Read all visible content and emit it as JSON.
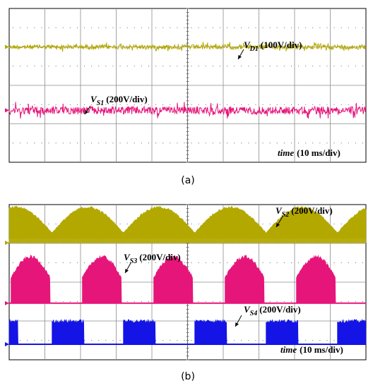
{
  "chart_data": [
    {
      "type": "line",
      "panel_label": "(a)",
      "time_base": "time (10 ms/div)",
      "time_label": "time",
      "time_unit": "(10 ms/div)",
      "x_divisions": 10,
      "y_divisions": 8,
      "series": [
        {
          "name": "V_D1",
          "label_main": "V",
          "label_sub": "D1",
          "scale": "(100V/div)",
          "color": "#b3a800",
          "waveform": "flat-noise",
          "level_div": 2.0,
          "noise_amplitude_div": 0.12
        },
        {
          "name": "V_S1",
          "label_main": "V",
          "label_sub": "S1",
          "scale": "(200V/div)",
          "color": "#e6157a",
          "waveform": "flat-noise",
          "level_div": 5.3,
          "noise_amplitude_div": 0.2
        }
      ]
    },
    {
      "type": "line",
      "panel_label": "(b)",
      "time_base": "time (10 ms/div)",
      "time_label": "time",
      "time_unit": "(10 ms/div)",
      "x_divisions": 10,
      "y_divisions": 8,
      "series": [
        {
          "name": "V_S2",
          "label_main": "V",
          "label_sub": "S2",
          "scale": "(200V/div)",
          "color": "#b3a800",
          "waveform": "rectified-sine-envelope",
          "baseline_div": 1.97,
          "period_div": 2.0
        },
        {
          "name": "V_S3",
          "label_main": "V",
          "label_sub": "S3",
          "scale": "(200V/div)",
          "color": "#e6157a",
          "waveform": "gated-sine-bursts",
          "baseline_div": 5.08,
          "period_div": 2.0
        },
        {
          "name": "V_S4",
          "label_main": "V",
          "label_sub": "S4",
          "scale": "(200V/div)",
          "color": "#1414e6",
          "waveform": "square-pwm-bursts",
          "baseline_div": 7.2,
          "period_div": 2.0
        }
      ]
    }
  ]
}
